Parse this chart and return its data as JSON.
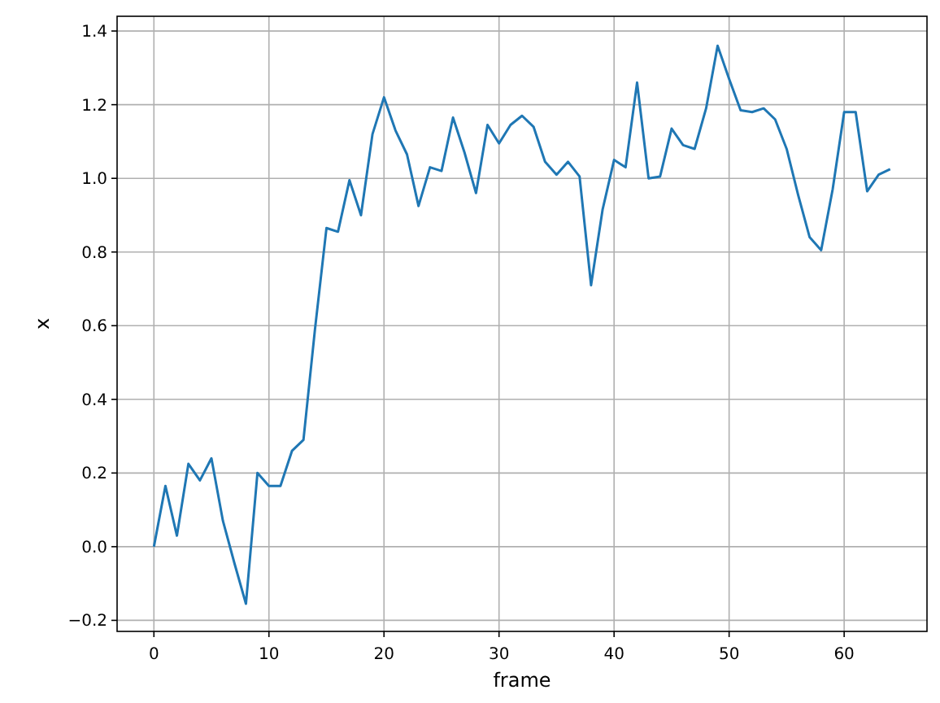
{
  "chart_data": {
    "type": "line",
    "xlabel": "frame",
    "ylabel": "x",
    "x": [
      0,
      1,
      2,
      3,
      4,
      5,
      6,
      7,
      8,
      9,
      10,
      11,
      12,
      13,
      14,
      15,
      16,
      17,
      18,
      19,
      20,
      21,
      22,
      23,
      24,
      25,
      26,
      27,
      28,
      29,
      30,
      31,
      32,
      33,
      34,
      35,
      36,
      37,
      38,
      39,
      40,
      41,
      42,
      43,
      44,
      45,
      46,
      47,
      48,
      49,
      50,
      51,
      52,
      53,
      54,
      55,
      56,
      57,
      58,
      59,
      60,
      61,
      62,
      63,
      64
    ],
    "series": [
      {
        "color": "#1f77b4",
        "values": [
          0.0,
          0.165,
          0.03,
          0.225,
          0.18,
          0.24,
          0.07,
          -0.045,
          -0.155,
          0.2,
          0.165,
          0.165,
          0.26,
          0.29,
          0.59,
          0.865,
          0.855,
          0.995,
          0.9,
          1.12,
          1.22,
          1.13,
          1.065,
          0.925,
          1.03,
          1.02,
          1.165,
          1.07,
          0.96,
          1.145,
          1.095,
          1.145,
          1.17,
          1.14,
          1.045,
          1.01,
          1.045,
          1.005,
          0.71,
          0.915,
          1.05,
          1.03,
          1.26,
          1.0,
          1.005,
          1.135,
          1.09,
          1.08,
          1.19,
          1.36,
          1.27,
          1.185,
          1.18,
          1.19,
          1.16,
          1.08,
          0.955,
          0.84,
          0.805,
          0.97,
          1.18,
          1.18,
          0.965,
          1.01,
          1.025
        ]
      }
    ],
    "xlim": [
      -3.2,
      67.2
    ],
    "xticks": [
      0,
      10,
      20,
      30,
      40,
      50,
      60
    ],
    "ylim": [
      -0.23,
      1.44
    ],
    "yticks": [
      {
        "value": -0.2,
        "label": "−0.2"
      },
      {
        "value": 0,
        "label": "0.0"
      },
      {
        "value": 0.2,
        "label": "0.2"
      },
      {
        "value": 0.4,
        "label": "0.4"
      },
      {
        "value": 0.6,
        "label": "0.6"
      },
      {
        "value": 0.8,
        "label": "0.8"
      },
      {
        "value": 1,
        "label": "1.0"
      },
      {
        "value": 1.2,
        "label": "1.2"
      },
      {
        "value": 1.4,
        "label": "1.4"
      }
    ],
    "grid": true,
    "line_style": "solid",
    "marker": "none"
  }
}
